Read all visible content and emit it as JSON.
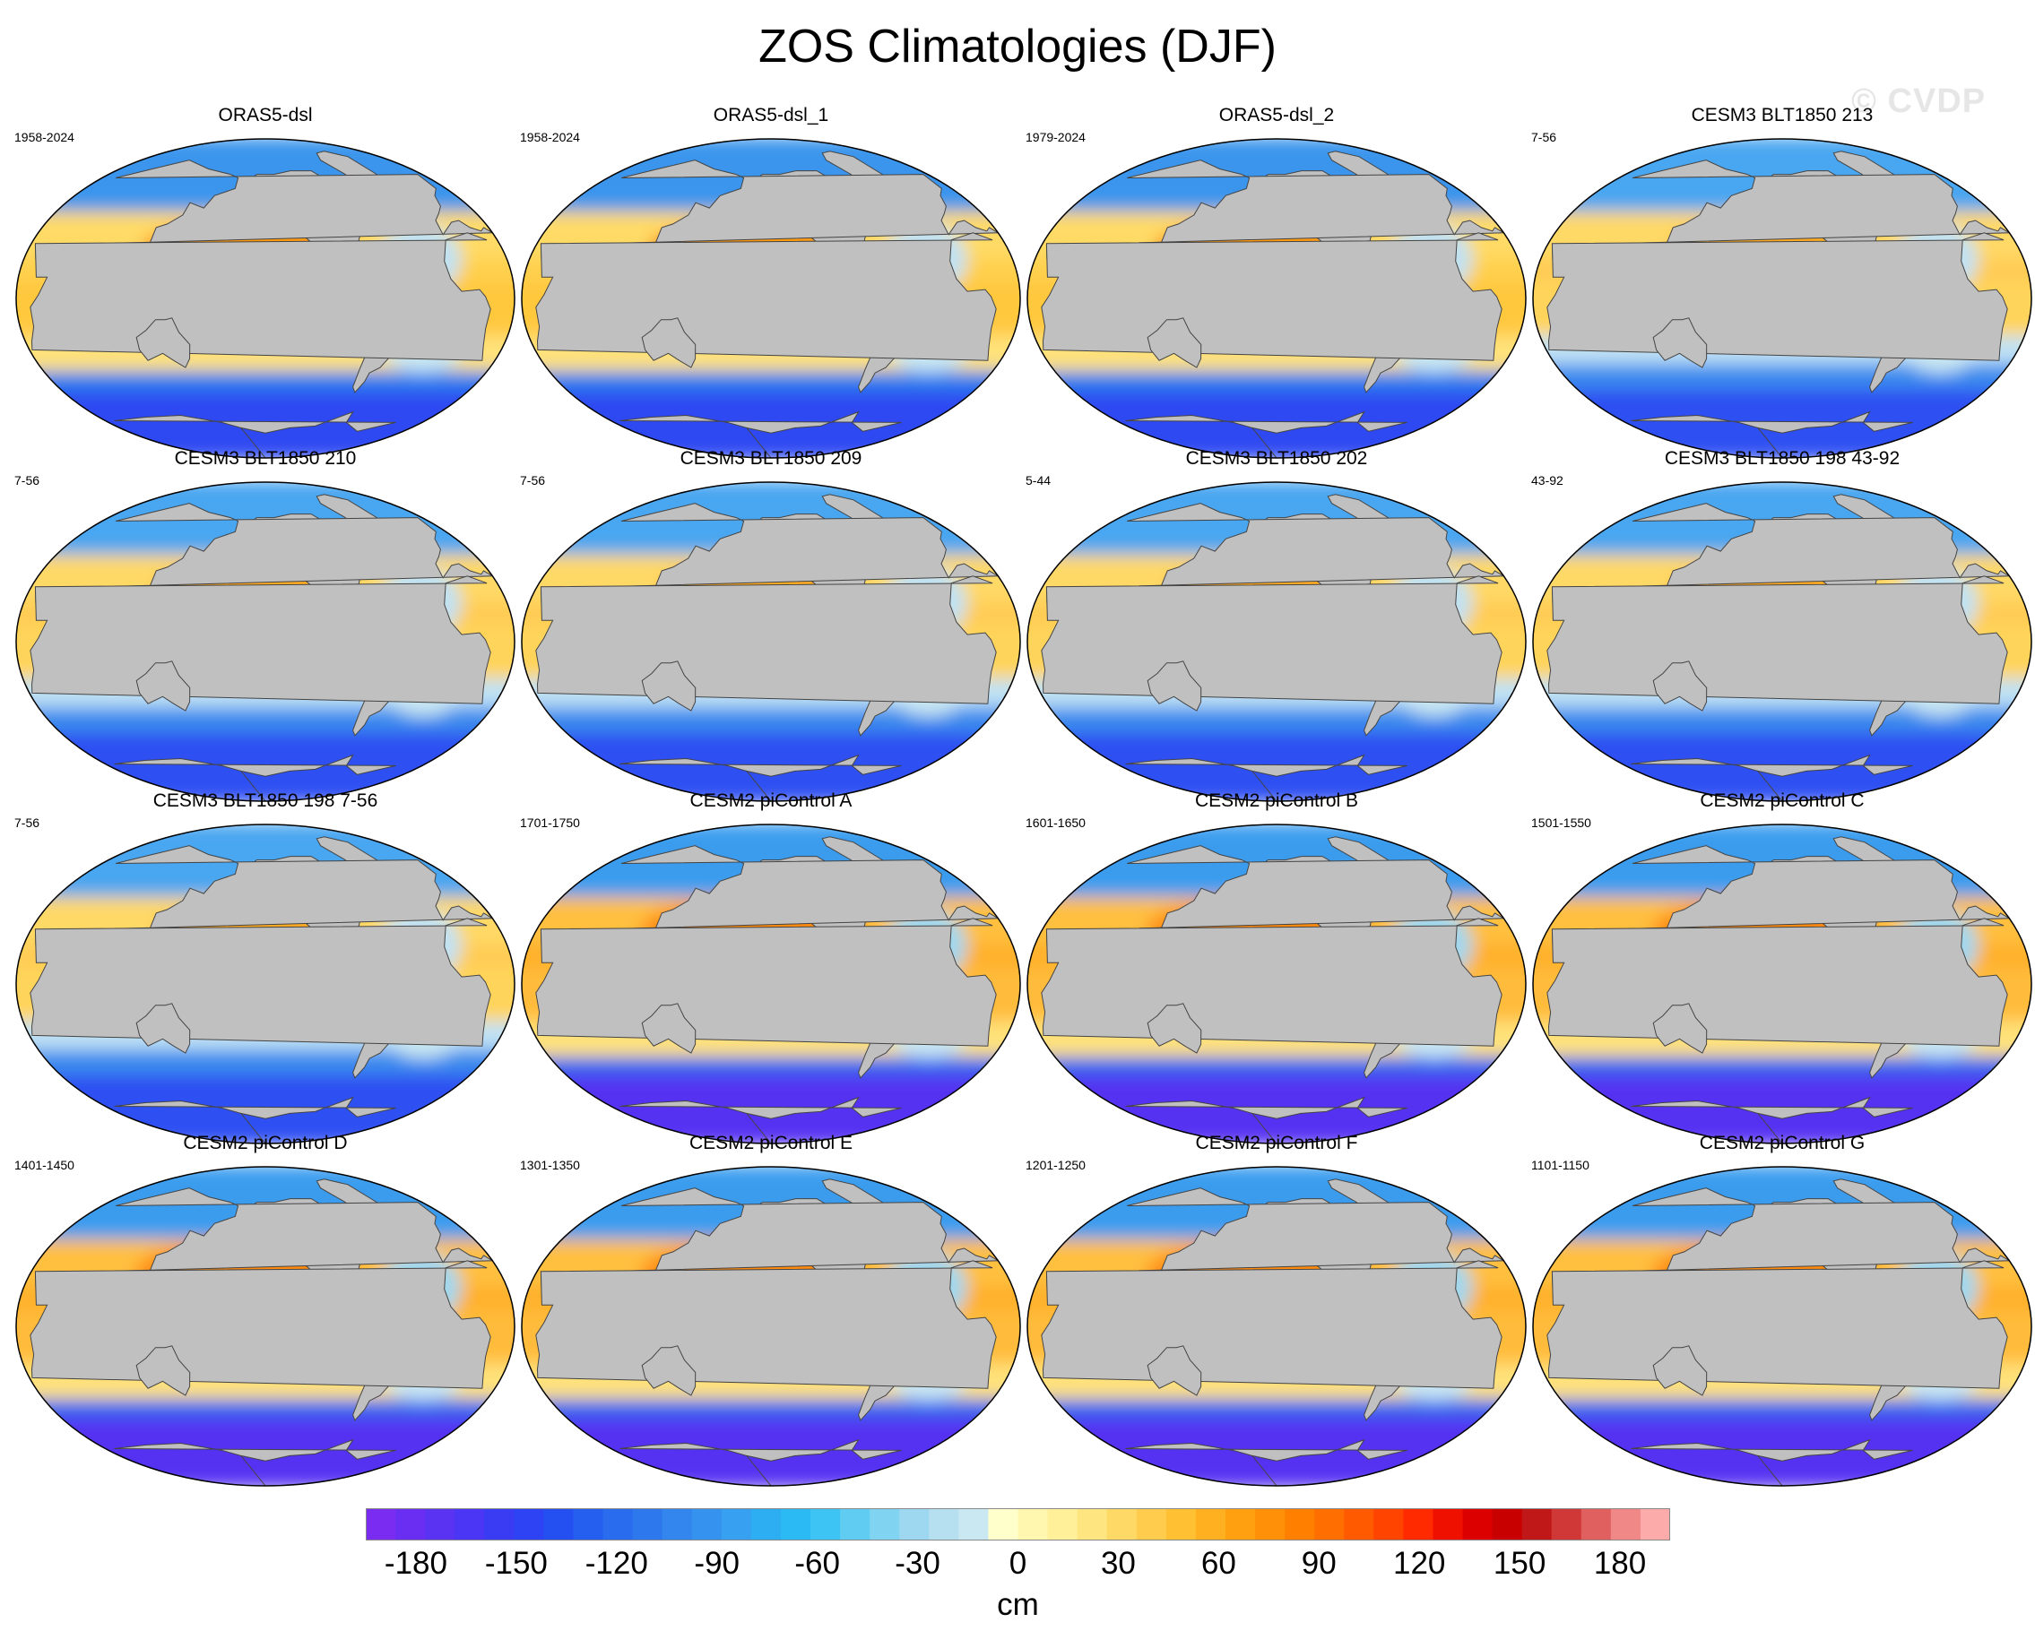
{
  "title": "ZOS Climatologies (DJF)",
  "watermark": "© CVDP",
  "panels": [
    {
      "title": "ORAS5-dsl",
      "years": "1958-2024",
      "style": "obs"
    },
    {
      "title": "ORAS5-dsl_1",
      "years": "1958-2024",
      "style": "obs"
    },
    {
      "title": "ORAS5-dsl_2",
      "years": "1979-2024",
      "style": "obs"
    },
    {
      "title": "CESM3 BLT1850 213",
      "years": "7-56",
      "style": "cesm3"
    },
    {
      "title": "CESM3 BLT1850 210",
      "years": "7-56",
      "style": "cesm3"
    },
    {
      "title": "CESM3 BLT1850 209",
      "years": "7-56",
      "style": "cesm3"
    },
    {
      "title": "CESM3 BLT1850 202",
      "years": "5-44",
      "style": "cesm3"
    },
    {
      "title": "CESM3 BLT1850 198 43-92",
      "years": "43-92",
      "style": "cesm3"
    },
    {
      "title": "CESM3 BLT1850 198 7-56",
      "years": "7-56",
      "style": "cesm3"
    },
    {
      "title": "CESM2 piControl A",
      "years": "1701-1750",
      "style": "cesm2"
    },
    {
      "title": "CESM2 piControl B",
      "years": "1601-1650",
      "style": "cesm2"
    },
    {
      "title": "CESM2 piControl C",
      "years": "1501-1550",
      "style": "cesm2"
    },
    {
      "title": "CESM2 piControl D",
      "years": "1401-1450",
      "style": "cesm2"
    },
    {
      "title": "CESM2 piControl E",
      "years": "1301-1350",
      "style": "cesm2"
    },
    {
      "title": "CESM2 piControl F",
      "years": "1201-1250",
      "style": "cesm2"
    },
    {
      "title": "CESM2 piControl G",
      "years": "1101-1150",
      "style": "cesm2"
    }
  ],
  "colorbar": {
    "units": "cm",
    "min": -195,
    "max": 195,
    "step": 10,
    "tick_labels": [
      "-180",
      "-150",
      "-120",
      "-90",
      "-60",
      "-30",
      "0",
      "30",
      "60",
      "90",
      "120",
      "150",
      "180"
    ],
    "colors": [
      "#7a2df0",
      "#6a2ef2",
      "#5a32f2",
      "#4a36f4",
      "#3a3cf4",
      "#2e44f4",
      "#2450f2",
      "#255ff0",
      "#2a6cee",
      "#2e78ee",
      "#3386ee",
      "#3592ee",
      "#37a0f0",
      "#2eaef2",
      "#2cbaf4",
      "#3ec4f4",
      "#60ccf2",
      "#80d4f2",
      "#9ed8f0",
      "#b6e0f0",
      "#cae8f2",
      "#ffffcc",
      "#fff6b0",
      "#fff099",
      "#ffe580",
      "#ffd966",
      "#ffcc4d",
      "#ffc033",
      "#ffb020",
      "#ffa010",
      "#ff9008",
      "#ff8000",
      "#ff6e00",
      "#ff5a00",
      "#ff4400",
      "#ff2a00",
      "#f01000",
      "#dd0000",
      "#c80000",
      "#c01818",
      "#d03838",
      "#e06060",
      "#f08888",
      "#fcaaaa"
    ]
  },
  "land_color": "#c0c0c0"
}
